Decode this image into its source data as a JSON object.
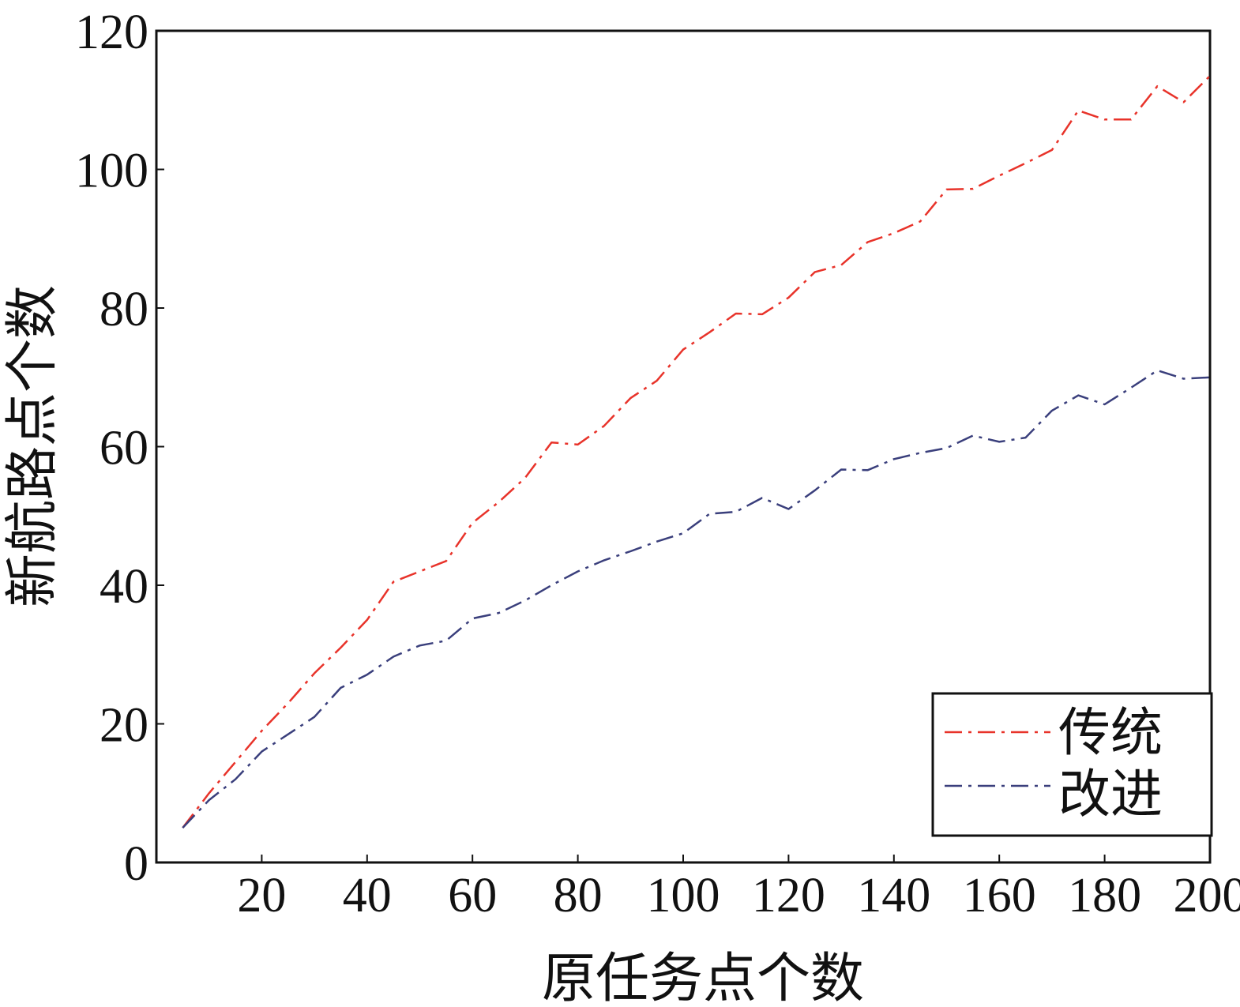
{
  "chart_data": {
    "type": "line",
    "title": "",
    "xlabel": "原任务点个数",
    "ylabel": "新航路点个数",
    "xlim": [
      0,
      200
    ],
    "ylim": [
      0,
      120
    ],
    "xticks": [
      20,
      40,
      60,
      80,
      100,
      120,
      140,
      160,
      180,
      200
    ],
    "yticks": [
      0,
      20,
      40,
      60,
      80,
      100,
      120
    ],
    "grid": false,
    "legend_position": "bottom-right",
    "x": [
      5,
      10,
      15,
      20,
      25,
      30,
      35,
      40,
      45,
      50,
      55,
      60,
      65,
      70,
      75,
      80,
      85,
      90,
      95,
      100,
      105,
      110,
      115,
      120,
      125,
      130,
      135,
      140,
      145,
      150,
      155,
      160,
      165,
      170,
      175,
      180,
      185,
      190,
      195,
      200
    ],
    "series": [
      {
        "name": "传统",
        "color": "#e8332a",
        "dash": "dash-dot",
        "values": [
          5,
          10,
          14.5,
          19,
          23,
          27.3,
          31,
          35,
          40.5,
          42,
          43.5,
          49,
          52,
          55.5,
          60.6,
          60.3,
          63,
          67,
          69.5,
          74,
          76.5,
          79.2,
          79.1,
          81.5,
          85.2,
          86.2,
          89.5,
          90.8,
          92.5,
          97.1,
          97.2,
          99.1,
          100.9,
          102.8,
          108.5,
          107.2,
          107.2,
          112,
          109.7,
          113.5
        ]
      },
      {
        "name": "改进",
        "color": "#3a3f7c",
        "dash": "dash-dot",
        "values": [
          5,
          9,
          12,
          16,
          18.5,
          21,
          25.2,
          27.1,
          29.7,
          31.3,
          32,
          35.2,
          36,
          37.8,
          40,
          42,
          43.6,
          44.9,
          46.3,
          47.5,
          50.3,
          50.6,
          52.6,
          51,
          53.7,
          56.7,
          56.6,
          58.2,
          59.1,
          59.8,
          61.6,
          60.7,
          61.3,
          65.2,
          67.4,
          66.1,
          68.5,
          71,
          69.8,
          70
        ]
      }
    ]
  }
}
